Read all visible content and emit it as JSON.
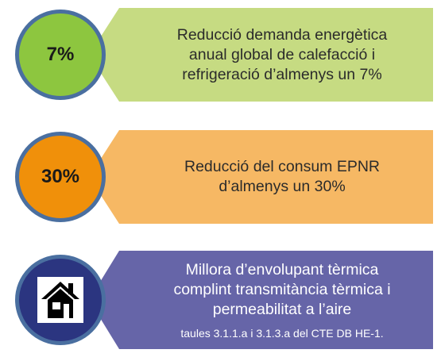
{
  "items": [
    {
      "percent": "7%",
      "lines": [
        "Reducció demanda energètica",
        "anual global de calefacció i",
        "refrigeració d’almenys un 7%"
      ],
      "circle_color": "#8dc63f",
      "banner_color": "#c6db82"
    },
    {
      "percent": "30%",
      "lines": [
        "Reducció del consum EPNR",
        "d’almenys un 30%"
      ],
      "circle_color": "#f0900a",
      "banner_color": "#f6b864"
    },
    {
      "icon": "house-icon",
      "lines": [
        "Millora d’envolupant tèrmica",
        "complint transmitància tèrmica i",
        "permeabilitat a l’aire"
      ],
      "note": "taules 3.1.1.a i 3.1.3.a del CTE DB HE-1.",
      "circle_color": "#2b3580",
      "banner_color": "#6665a8"
    }
  ]
}
